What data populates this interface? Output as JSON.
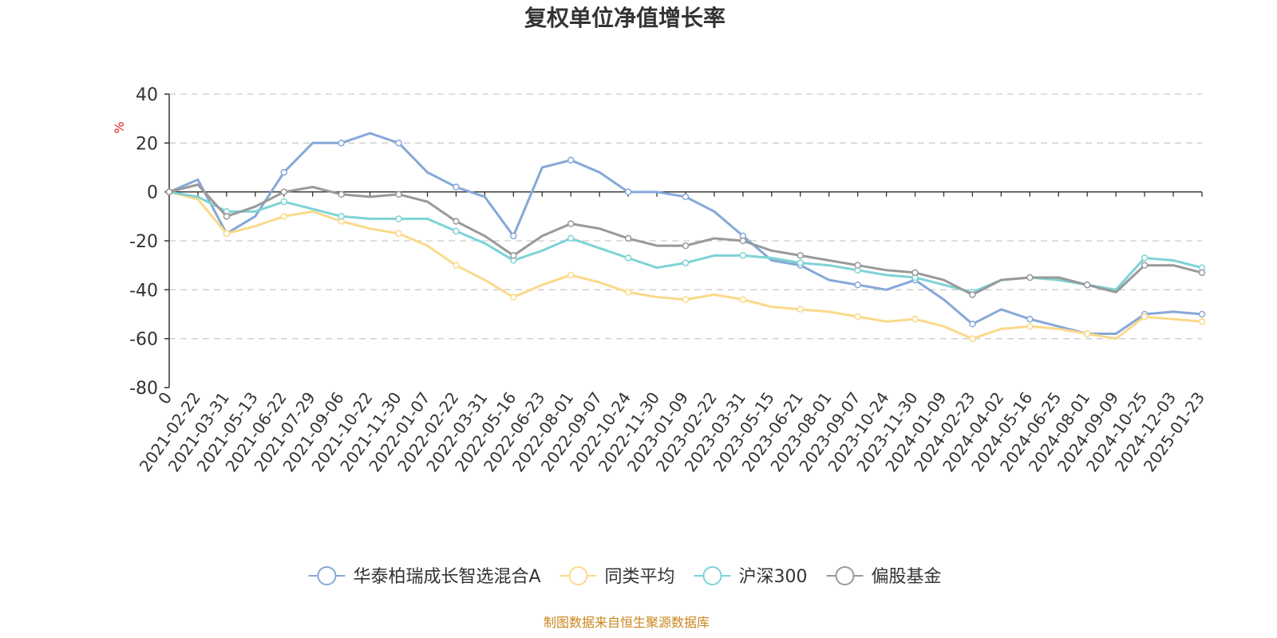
{
  "chart_data": {
    "type": "line",
    "title": "复权单位净值增长率",
    "ylabel": "%",
    "xlabel": "",
    "ylim": [
      -80,
      40
    ],
    "yticks": [
      40,
      20,
      0,
      -20,
      -40,
      -60,
      -80
    ],
    "grid": true,
    "legend_position": "bottom",
    "categories": [
      "0",
      "2021-02-22",
      "2021-03-31",
      "2021-05-13",
      "2021-06-22",
      "2021-07-29",
      "2021-09-06",
      "2021-10-22",
      "2021-11-30",
      "2022-01-07",
      "2022-02-22",
      "2022-03-31",
      "2022-05-16",
      "2022-06-23",
      "2022-08-01",
      "2022-09-07",
      "2022-10-24",
      "2022-11-30",
      "2023-01-09",
      "2023-02-22",
      "2023-03-31",
      "2023-05-15",
      "2023-06-21",
      "2023-08-01",
      "2023-09-07",
      "2023-10-24",
      "2023-11-30",
      "2024-01-09",
      "2024-02-23",
      "2024-04-02",
      "2024-05-16",
      "2024-06-25",
      "2024-08-01",
      "2024-09-09",
      "2024-10-25",
      "2024-12-03",
      "2025-01-23"
    ],
    "series": [
      {
        "name": "华泰柏瑞成长智选混合A",
        "color": "#86a8d8",
        "values": [
          0,
          5,
          -17,
          -10,
          8,
          20,
          20,
          24,
          20,
          8,
          2,
          -2,
          -18,
          10,
          13,
          8,
          0,
          0,
          -2,
          -8,
          -18,
          -28,
          -30,
          -36,
          -38,
          -40,
          -36,
          -44,
          -54,
          -48,
          -52,
          -55,
          -58,
          -58,
          -50,
          -49,
          -50
        ]
      },
      {
        "name": "同类平均",
        "color": "#fbd98a",
        "values": [
          0,
          -3,
          -17,
          -14,
          -10,
          -8,
          -12,
          -15,
          -17,
          -22,
          -30,
          -36,
          -43,
          -38,
          -34,
          -37,
          -41,
          -43,
          -44,
          -42,
          -44,
          -47,
          -48,
          -49,
          -51,
          -53,
          -52,
          -55,
          -60,
          -56,
          -55,
          -56,
          -58,
          -60,
          -51,
          -52,
          -53
        ]
      },
      {
        "name": "沪深300",
        "color": "#7dd3d6",
        "values": [
          0,
          -2,
          -8,
          -8,
          -4,
          -7,
          -10,
          -11,
          -11,
          -11,
          -16,
          -21,
          -28,
          -24,
          -19,
          -23,
          -27,
          -31,
          -29,
          -26,
          -26,
          -27,
          -29,
          -30,
          -32,
          -34,
          -35,
          -38,
          -41,
          -36,
          -35,
          -36,
          -38,
          -40,
          -27,
          -28,
          -31
        ]
      },
      {
        "name": "偏股基金",
        "color": "#999999",
        "values": [
          0,
          3,
          -10,
          -6,
          0,
          2,
          -1,
          -2,
          -1,
          -4,
          -12,
          -18,
          -26,
          -18,
          -13,
          -15,
          -19,
          -22,
          -22,
          -19,
          -20,
          -24,
          -26,
          -28,
          -30,
          -32,
          -33,
          -36,
          -42,
          -36,
          -35,
          -35,
          -38,
          -41,
          -30,
          -30,
          -33
        ]
      }
    ]
  },
  "unit_label": "%",
  "source_note": "制图数据来自恒生聚源数据库"
}
